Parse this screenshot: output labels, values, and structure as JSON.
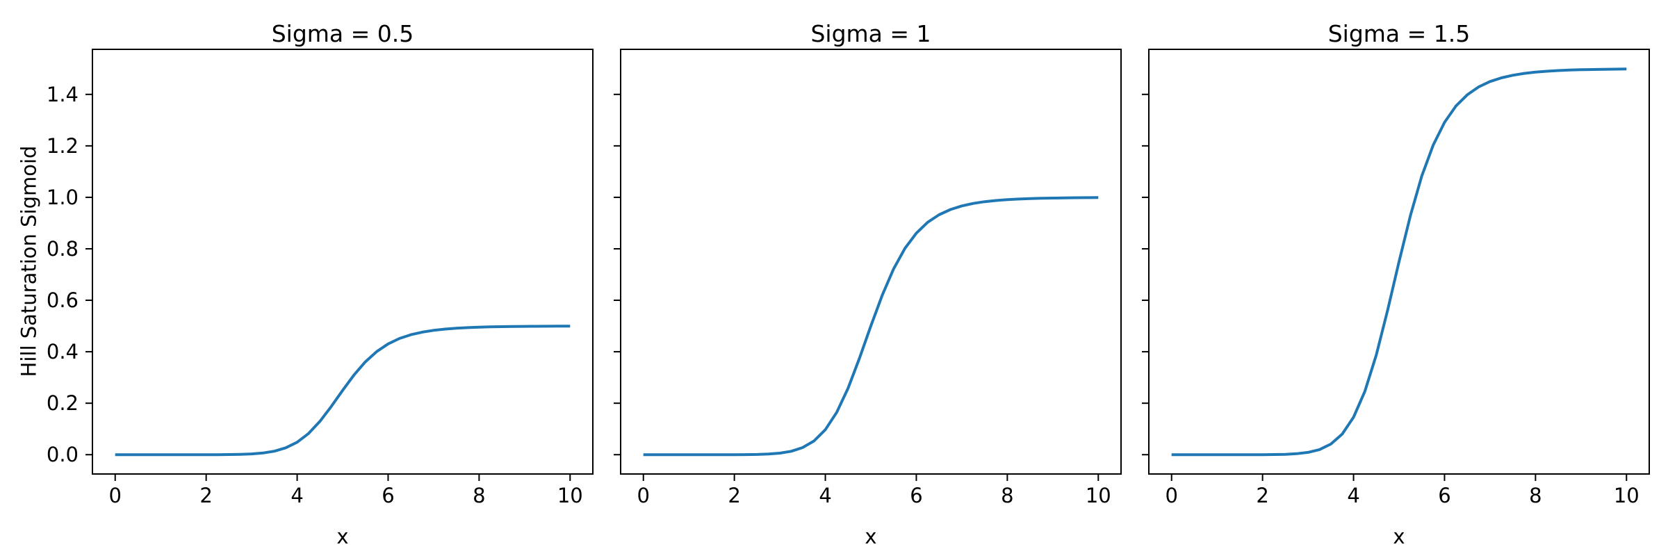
{
  "figure": {
    "background_color": "#ffffff",
    "curve_color": "#1f77b4",
    "axis_color": "#000000",
    "shared_ylabel": "Hill Saturation Sigmoid"
  },
  "chart_data": [
    {
      "type": "line",
      "title": "Sigma = 0.5",
      "xlabel": "x",
      "ylabel": "Hill Saturation Sigmoid",
      "xlim": [
        -0.5,
        10.5
      ],
      "ylim": [
        -0.075,
        1.575
      ],
      "xticks": [
        0,
        2,
        4,
        6,
        8,
        10
      ],
      "xtick_labels": [
        "0",
        "2",
        "4",
        "6",
        "8",
        "10"
      ],
      "yticks": [
        0.0,
        0.2,
        0.4,
        0.6,
        0.8,
        1.0,
        1.2,
        1.4
      ],
      "ytick_labels": [
        "0.0",
        "0.2",
        "0.4",
        "0.6",
        "0.8",
        "1.0",
        "1.2",
        "1.4"
      ],
      "show_ytick_labels": true,
      "grid": false,
      "legend": "none",
      "line_color": "#1f77b4",
      "series": [
        {
          "name": "sigma = 0.5",
          "saturation": 0.5,
          "x": [
            0,
            0.25,
            0.5,
            0.75,
            1,
            1.25,
            1.5,
            1.75,
            2,
            2.25,
            2.5,
            2.75,
            3,
            3.25,
            3.5,
            3.75,
            4,
            4.25,
            4.5,
            4.75,
            5,
            5.25,
            5.5,
            5.75,
            6,
            6.25,
            6.5,
            6.75,
            7,
            7.25,
            7.5,
            7.75,
            8,
            8.25,
            8.5,
            8.75,
            9,
            9.25,
            9.5,
            9.75,
            10
          ],
          "y": [
            0,
            0,
            0,
            0,
            0,
            0,
            0,
            0,
            0.0001,
            0.0002,
            0.0005,
            0.0013,
            0.003,
            0.0066,
            0.0137,
            0.0267,
            0.0485,
            0.0822,
            0.1293,
            0.1873,
            0.25,
            0.3098,
            0.3609,
            0.4009,
            0.4305,
            0.4515,
            0.4662,
            0.4763,
            0.4833,
            0.4881,
            0.4915,
            0.4938,
            0.4955,
            0.4967,
            0.4975,
            0.4982,
            0.4986,
            0.4989,
            0.4992,
            0.4994,
            0.4995
          ]
        }
      ]
    },
    {
      "type": "line",
      "title": "Sigma = 1",
      "xlabel": "x",
      "ylabel": "",
      "xlim": [
        -0.5,
        10.5
      ],
      "ylim": [
        -0.075,
        1.575
      ],
      "xticks": [
        0,
        2,
        4,
        6,
        8,
        10
      ],
      "xtick_labels": [
        "0",
        "2",
        "4",
        "6",
        "8",
        "10"
      ],
      "yticks": [
        0.0,
        0.2,
        0.4,
        0.6,
        0.8,
        1.0,
        1.2,
        1.4
      ],
      "ytick_labels": [
        "0.0",
        "0.2",
        "0.4",
        "0.6",
        "0.8",
        "1.0",
        "1.2",
        "1.4"
      ],
      "show_ytick_labels": false,
      "grid": false,
      "legend": "none",
      "line_color": "#1f77b4",
      "series": [
        {
          "name": "sigma = 1",
          "saturation": 1.0,
          "x": [
            0,
            0.25,
            0.5,
            0.75,
            1,
            1.25,
            1.5,
            1.75,
            2,
            2.25,
            2.5,
            2.75,
            3,
            3.25,
            3.5,
            3.75,
            4,
            4.25,
            4.5,
            4.75,
            5,
            5.25,
            5.5,
            5.75,
            6,
            6.25,
            6.5,
            6.75,
            7,
            7.25,
            7.5,
            7.75,
            8,
            8.25,
            8.5,
            8.75,
            9,
            9.25,
            9.5,
            9.75,
            10
          ],
          "y": [
            0,
            0,
            0,
            0,
            0,
            0,
            0,
            0,
            0.0001,
            0.0003,
            0.001,
            0.0025,
            0.006,
            0.0133,
            0.0275,
            0.0533,
            0.097,
            0.1645,
            0.2585,
            0.3745,
            0.5,
            0.6196,
            0.7217,
            0.8018,
            0.861,
            0.903,
            0.9324,
            0.9526,
            0.9666,
            0.9762,
            0.983,
            0.9877,
            0.991,
            0.9934,
            0.9951,
            0.9963,
            0.9972,
            0.9979,
            0.9984,
            0.9987,
            0.999
          ]
        }
      ]
    },
    {
      "type": "line",
      "title": "Sigma = 1.5",
      "xlabel": "x",
      "ylabel": "",
      "xlim": [
        -0.5,
        10.5
      ],
      "ylim": [
        -0.075,
        1.575
      ],
      "xticks": [
        0,
        2,
        4,
        6,
        8,
        10
      ],
      "xtick_labels": [
        "0",
        "2",
        "4",
        "6",
        "8",
        "10"
      ],
      "yticks": [
        0.0,
        0.2,
        0.4,
        0.6,
        0.8,
        1.0,
        1.2,
        1.4
      ],
      "ytick_labels": [
        "0.0",
        "0.2",
        "0.4",
        "0.6",
        "0.8",
        "1.0",
        "1.2",
        "1.4"
      ],
      "show_ytick_labels": false,
      "grid": false,
      "legend": "none",
      "line_color": "#1f77b4",
      "series": [
        {
          "name": "sigma = 1.5",
          "saturation": 1.5,
          "x": [
            0,
            0.25,
            0.5,
            0.75,
            1,
            1.25,
            1.5,
            1.75,
            2,
            2.25,
            2.5,
            2.75,
            3,
            3.25,
            3.5,
            3.75,
            4,
            4.25,
            4.5,
            4.75,
            5,
            5.25,
            5.5,
            5.75,
            6,
            6.25,
            6.5,
            6.75,
            7,
            7.25,
            7.5,
            7.75,
            8,
            8.25,
            8.5,
            8.75,
            9,
            9.25,
            9.5,
            9.75,
            10
          ],
          "y": [
            0,
            0,
            0,
            0,
            0,
            0,
            0,
            0,
            0.0002,
            0.0005,
            0.0015,
            0.0038,
            0.009,
            0.0199,
            0.0412,
            0.08,
            0.1454,
            0.2467,
            0.3878,
            0.5618,
            0.75,
            0.9294,
            1.0826,
            1.2027,
            1.2914,
            1.3546,
            1.3985,
            1.4289,
            1.4499,
            1.4644,
            1.4744,
            1.4815,
            1.4865,
            1.49,
            1.4926,
            1.4945,
            1.4958,
            1.4968,
            1.4976,
            1.4981,
            1.4985
          ]
        }
      ]
    }
  ]
}
